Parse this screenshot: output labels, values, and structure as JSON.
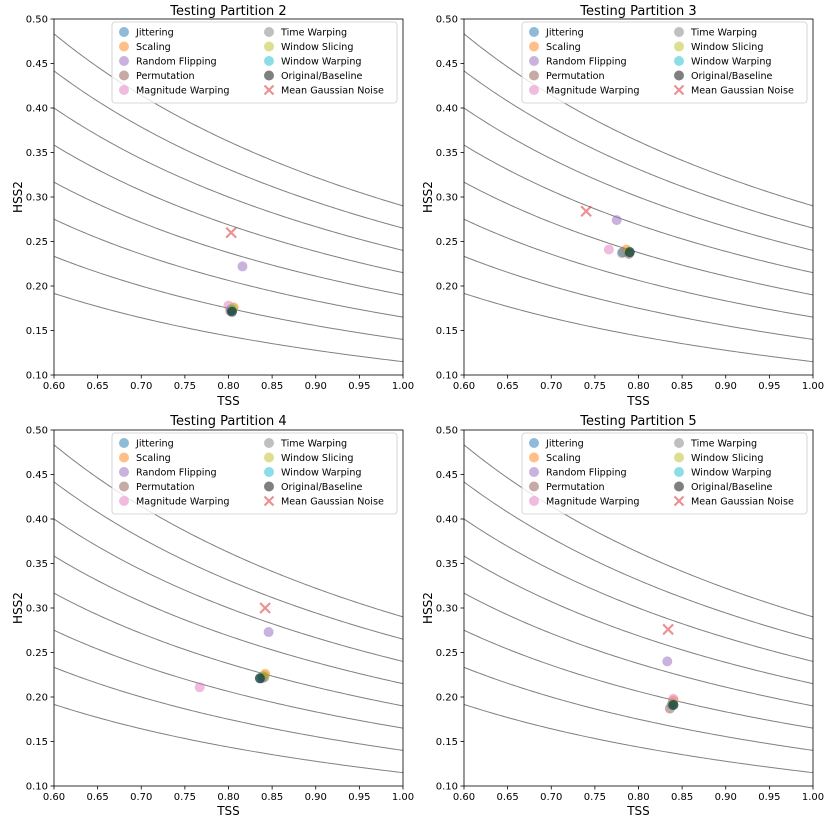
{
  "chart_data": [
    {
      "type": "scatter",
      "title": "Testing Partition 2",
      "xlabel": "TSS",
      "ylabel": "HSS2",
      "xlim": [
        0.6,
        1.0
      ],
      "ylim": [
        0.1,
        0.5
      ],
      "xticks": [
        "0.60",
        "0.65",
        "0.70",
        "0.75",
        "0.80",
        "0.85",
        "0.90",
        "0.95",
        "1.00"
      ],
      "yticks": [
        "0.10",
        "0.15",
        "0.20",
        "0.25",
        "0.30",
        "0.35",
        "0.40",
        "0.45",
        "0.50"
      ],
      "legend_position": "top-right",
      "points": [
        {
          "series": "Jittering",
          "x": 0.803,
          "y": 0.174
        },
        {
          "series": "Scaling",
          "x": 0.806,
          "y": 0.176
        },
        {
          "series": "Random Flipping",
          "x": 0.816,
          "y": 0.222
        },
        {
          "series": "Permutation",
          "x": 0.802,
          "y": 0.172
        },
        {
          "series": "Magnitude Warping",
          "x": 0.8,
          "y": 0.178
        },
        {
          "series": "Time Warping",
          "x": 0.804,
          "y": 0.173
        },
        {
          "series": "Window Slicing",
          "x": 0.805,
          "y": 0.175
        },
        {
          "series": "Window Warping",
          "x": 0.804,
          "y": 0.172
        },
        {
          "series": "Original/Baseline",
          "x": 0.804,
          "y": 0.171
        },
        {
          "series": "Mean Gaussian Noise",
          "x": 0.803,
          "y": 0.26
        }
      ]
    },
    {
      "type": "scatter",
      "title": "Testing Partition 3",
      "xlabel": "TSS",
      "ylabel": "HSS2",
      "xlim": [
        0.6,
        1.0
      ],
      "ylim": [
        0.1,
        0.5
      ],
      "xticks": [
        "0.60",
        "0.65",
        "0.70",
        "0.75",
        "0.80",
        "0.85",
        "0.90",
        "0.95",
        "1.00"
      ],
      "yticks": [
        "0.10",
        "0.15",
        "0.20",
        "0.25",
        "0.30",
        "0.35",
        "0.40",
        "0.45",
        "0.50"
      ],
      "legend_position": "top-right",
      "points": [
        {
          "series": "Jittering",
          "x": 0.782,
          "y": 0.238
        },
        {
          "series": "Scaling",
          "x": 0.786,
          "y": 0.241
        },
        {
          "series": "Random Flipping",
          "x": 0.775,
          "y": 0.274
        },
        {
          "series": "Permutation",
          "x": 0.789,
          "y": 0.236
        },
        {
          "series": "Magnitude Warping",
          "x": 0.766,
          "y": 0.241
        },
        {
          "series": "Time Warping",
          "x": 0.781,
          "y": 0.237
        },
        {
          "series": "Window Slicing",
          "x": 0.789,
          "y": 0.239
        },
        {
          "series": "Window Warping",
          "x": 0.79,
          "y": 0.238
        },
        {
          "series": "Original/Baseline",
          "x": 0.79,
          "y": 0.238
        },
        {
          "series": "Mean Gaussian Noise",
          "x": 0.74,
          "y": 0.284
        }
      ]
    },
    {
      "type": "scatter",
      "title": "Testing Partition 4",
      "xlabel": "TSS",
      "ylabel": "HSS2",
      "xlim": [
        0.6,
        1.0
      ],
      "ylim": [
        0.1,
        0.5
      ],
      "xticks": [
        "0.60",
        "0.65",
        "0.70",
        "0.75",
        "0.80",
        "0.85",
        "0.90",
        "0.95",
        "1.00"
      ],
      "yticks": [
        "0.10",
        "0.15",
        "0.20",
        "0.25",
        "0.30",
        "0.35",
        "0.40",
        "0.45",
        "0.50"
      ],
      "legend_position": "top-right",
      "points": [
        {
          "series": "Jittering",
          "x": 0.84,
          "y": 0.223
        },
        {
          "series": "Scaling",
          "x": 0.842,
          "y": 0.226
        },
        {
          "series": "Random Flipping",
          "x": 0.846,
          "y": 0.273
        },
        {
          "series": "Permutation",
          "x": 0.838,
          "y": 0.221
        },
        {
          "series": "Magnitude Warping",
          "x": 0.767,
          "y": 0.211
        },
        {
          "series": "Time Warping",
          "x": 0.841,
          "y": 0.222
        },
        {
          "series": "Window Slicing",
          "x": 0.841,
          "y": 0.224
        },
        {
          "series": "Window Warping",
          "x": 0.836,
          "y": 0.221
        },
        {
          "series": "Original/Baseline",
          "x": 0.836,
          "y": 0.221
        },
        {
          "series": "Mean Gaussian Noise",
          "x": 0.842,
          "y": 0.3
        }
      ]
    },
    {
      "type": "scatter",
      "title": "Testing Partition 5",
      "xlabel": "TSS",
      "ylabel": "HSS2",
      "xlim": [
        0.6,
        1.0
      ],
      "ylim": [
        0.1,
        0.5
      ],
      "xticks": [
        "0.60",
        "0.65",
        "0.70",
        "0.75",
        "0.80",
        "0.85",
        "0.90",
        "0.95",
        "1.00"
      ],
      "yticks": [
        "0.10",
        "0.15",
        "0.20",
        "0.25",
        "0.30",
        "0.35",
        "0.40",
        "0.45",
        "0.50"
      ],
      "legend_position": "top-right",
      "points": [
        {
          "series": "Jittering",
          "x": 0.839,
          "y": 0.193
        },
        {
          "series": "Scaling",
          "x": 0.84,
          "y": 0.196
        },
        {
          "series": "Random Flipping",
          "x": 0.833,
          "y": 0.24
        },
        {
          "series": "Permutation",
          "x": 0.836,
          "y": 0.187
        },
        {
          "series": "Magnitude Warping",
          "x": 0.84,
          "y": 0.198
        },
        {
          "series": "Time Warping",
          "x": 0.838,
          "y": 0.191
        },
        {
          "series": "Window Slicing",
          "x": 0.84,
          "y": 0.192
        },
        {
          "series": "Window Warping",
          "x": 0.84,
          "y": 0.191
        },
        {
          "series": "Original/Baseline",
          "x": 0.84,
          "y": 0.191
        },
        {
          "series": "Mean Gaussian Noise",
          "x": 0.834,
          "y": 0.276
        }
      ]
    }
  ],
  "legend": [
    {
      "name": "Jittering",
      "color": "#1f77b4",
      "marker": "circle"
    },
    {
      "name": "Scaling",
      "color": "#ff7f0e",
      "marker": "circle"
    },
    {
      "name": "Random Flipping",
      "color": "#9467bd",
      "marker": "circle"
    },
    {
      "name": "Permutation",
      "color": "#8c564b",
      "marker": "circle"
    },
    {
      "name": "Magnitude Warping",
      "color": "#e377c2",
      "marker": "circle"
    },
    {
      "name": "Time Warping",
      "color": "#7f7f7f",
      "marker": "circle"
    },
    {
      "name": "Window Slicing",
      "color": "#bcbd22",
      "marker": "circle"
    },
    {
      "name": "Window Warping",
      "color": "#17becf",
      "marker": "circle"
    },
    {
      "name": "Original/Baseline",
      "color": "#000000",
      "marker": "circle"
    },
    {
      "name": "Mean Gaussian Noise",
      "color": "#d62728",
      "marker": "x"
    }
  ],
  "marker_alpha": 0.5,
  "contour_color": "#808080",
  "contour_levels": [
    0.115,
    0.14,
    0.165,
    0.19,
    0.215,
    0.24,
    0.265,
    0.29
  ]
}
